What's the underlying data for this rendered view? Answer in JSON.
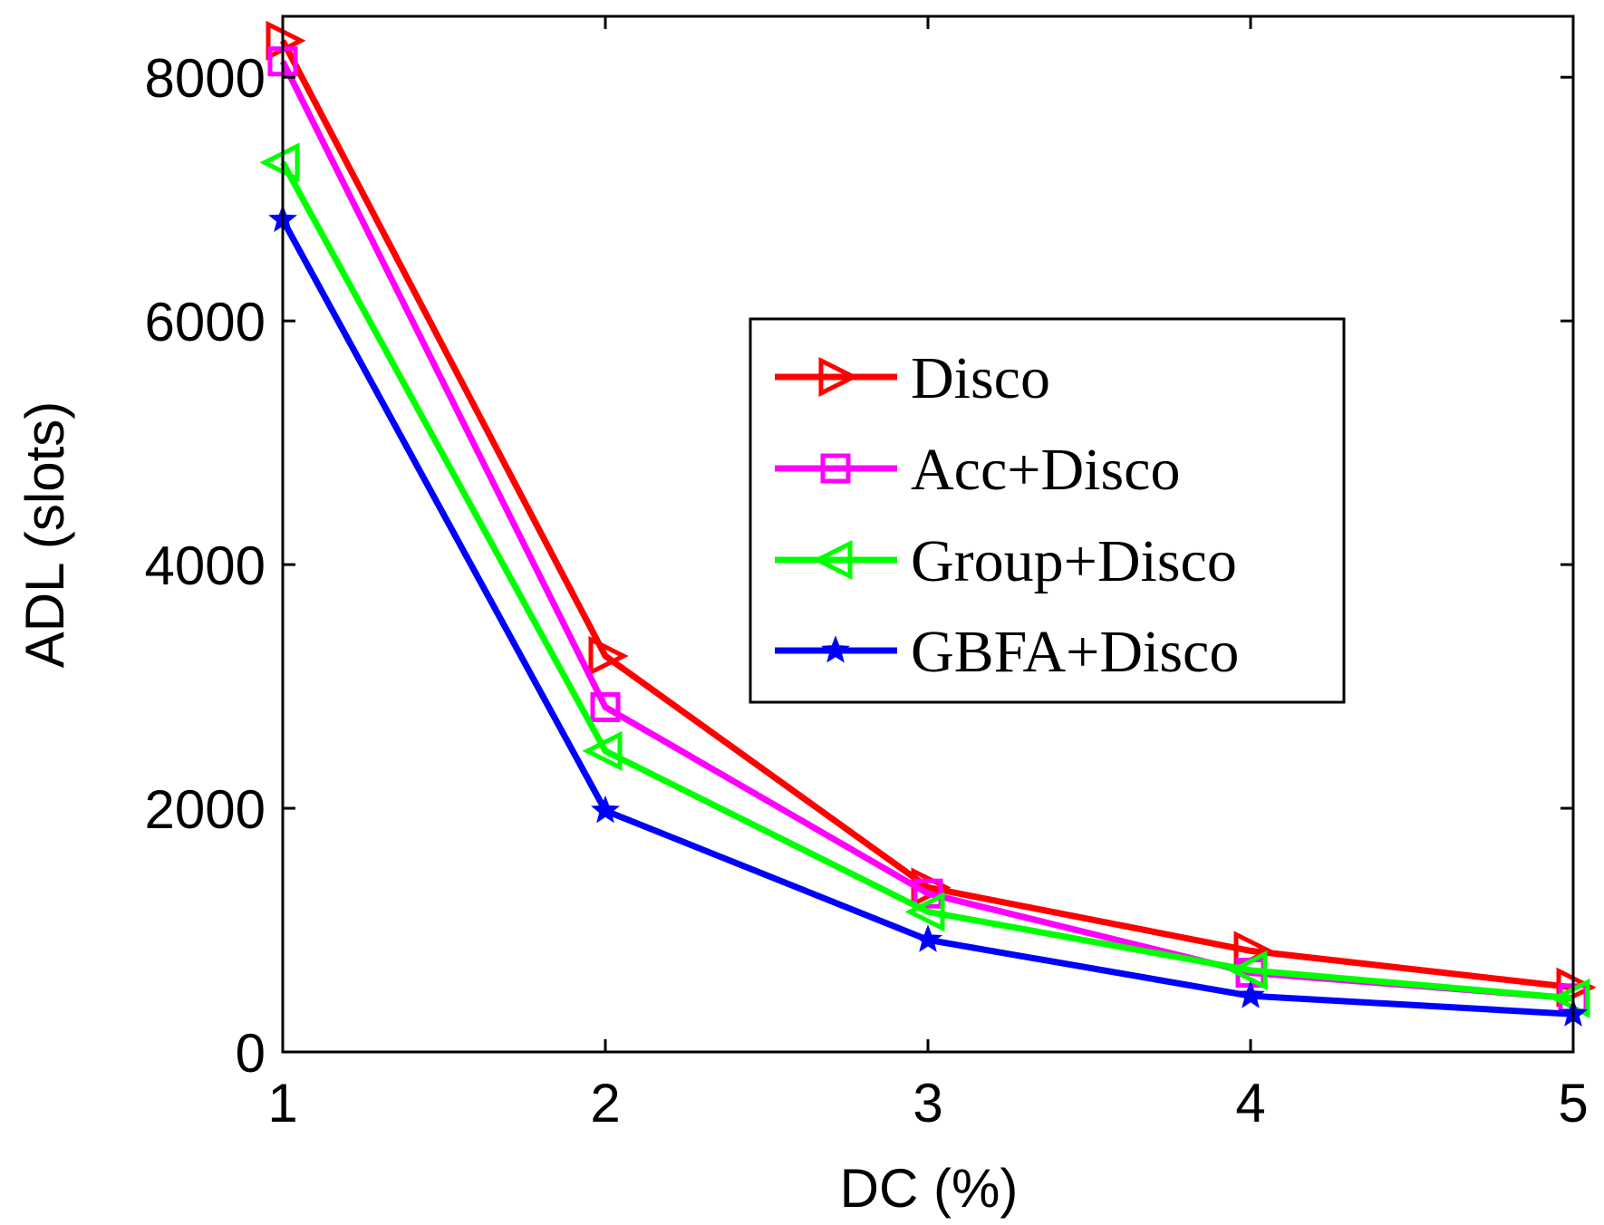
{
  "chart_data": {
    "type": "line",
    "title": "",
    "xlabel": "DC (%)",
    "ylabel": "ADL (slots)",
    "x": [
      1,
      2,
      3,
      4,
      5
    ],
    "xlim": [
      1,
      5
    ],
    "ylim": [
      0,
      8500
    ],
    "xticks": [
      "1",
      "2",
      "3",
      "4",
      "5"
    ],
    "yticks": [
      "0",
      "2000",
      "4000",
      "6000",
      "8000"
    ],
    "legend_position": "center-right",
    "series": [
      {
        "name": "Disco",
        "color": "#ff0000",
        "marker": "triangle-right",
        "values": [
          8300,
          3250,
          1350,
          830,
          530
        ]
      },
      {
        "name": "Acc+Disco",
        "color": "#ff00ff",
        "marker": "square",
        "values": [
          8130,
          2830,
          1300,
          650,
          440
        ]
      },
      {
        "name": "Group+Disco",
        "color": "#00ff00",
        "marker": "triangle-left",
        "values": [
          7300,
          2470,
          1150,
          670,
          440
        ]
      },
      {
        "name": "GBFA+Disco",
        "color": "#0000ff",
        "marker": "star",
        "values": [
          6830,
          1980,
          920,
          460,
          310
        ]
      }
    ]
  }
}
